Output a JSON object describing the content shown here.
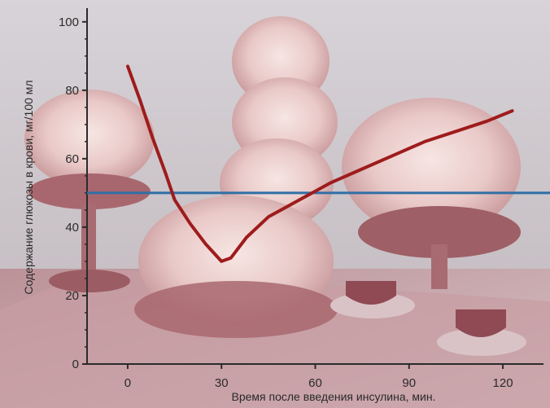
{
  "chart_data": {
    "type": "line",
    "xlabel": "Время после введения инсулина, мин.",
    "ylabel": "Содержание глюкозы в крови, мг/100 мл",
    "xlim": [
      -13,
      133
    ],
    "ylim": [
      0,
      104
    ],
    "x_ticks": [
      0,
      30,
      60,
      90,
      120
    ],
    "y_ticks": [
      0,
      20,
      40,
      60,
      80,
      100
    ],
    "grid": false,
    "series": [
      {
        "color": "#9e1c1c",
        "x": [
          0,
          4,
          8,
          12,
          15,
          20,
          25,
          30,
          33,
          38,
          45,
          55,
          65,
          75,
          85,
          95,
          105,
          115,
          123
        ],
        "y": [
          87,
          77,
          66,
          56,
          48,
          41,
          35,
          30,
          31,
          37,
          43,
          48,
          53,
          57,
          61,
          65,
          68,
          71,
          74
        ]
      }
    ],
    "reference_lines": [
      {
        "orientation": "horizontal",
        "y": 50,
        "color": "#2f6fa6"
      }
    ],
    "background": "photograph of meringue desserts on plates with teacups"
  }
}
